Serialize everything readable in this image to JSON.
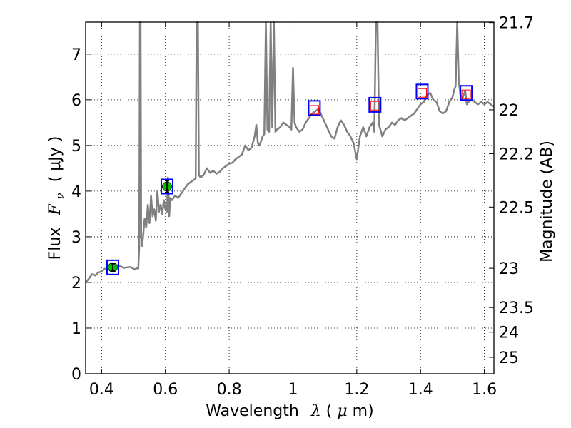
{
  "chart_data": {
    "type": "line",
    "title": "",
    "xlabel_prefix": "Wavelength",
    "xlabel_symbol": "λ",
    "xlabel_unit_open": " (",
    "xlabel_unit_mu": "μ",
    "xlabel_unit_rest": "m)",
    "ylabel_prefix": "Flux",
    "ylabel_symbol_F": "F",
    "ylabel_symbol_sub": "ν",
    "ylabel_unit": "(  μJy )",
    "y2label": "Magnitude (AB)",
    "xlim": [
      0.35,
      1.63
    ],
    "ylim": [
      0,
      7.7
    ],
    "grid": true,
    "grid_style": "dotted",
    "x_ticks": [
      {
        "v": 0.4,
        "label": "0.4"
      },
      {
        "v": 0.6,
        "label": "0.6"
      },
      {
        "v": 0.8,
        "label": "0.8"
      },
      {
        "v": 1.0,
        "label": "1"
      },
      {
        "v": 1.2,
        "label": "1.2"
      },
      {
        "v": 1.4,
        "label": "1.4"
      },
      {
        "v": 1.6,
        "label": "1.6"
      }
    ],
    "y_ticks": [
      {
        "v": 0,
        "label": "0"
      },
      {
        "v": 1,
        "label": "1"
      },
      {
        "v": 2,
        "label": "2"
      },
      {
        "v": 3,
        "label": "3"
      },
      {
        "v": 4,
        "label": "4"
      },
      {
        "v": 5,
        "label": "5"
      },
      {
        "v": 6,
        "label": "6"
      },
      {
        "v": 7,
        "label": "7"
      }
    ],
    "y2_ticks": [
      {
        "flux": 7.69,
        "label": "21.7"
      },
      {
        "flux": 5.78,
        "label": "22"
      },
      {
        "flux": 4.82,
        "label": "22.2"
      },
      {
        "flux": 3.65,
        "label": "22.5"
      },
      {
        "flux": 2.31,
        "label": "23"
      },
      {
        "flux": 1.45,
        "label": "23.5"
      },
      {
        "flux": 0.91,
        "label": "24"
      },
      {
        "flux": 0.36,
        "label": "25"
      }
    ],
    "series": [
      {
        "role": "model-sed",
        "color": "#808080",
        "points": [
          [
            0.35,
            2.0
          ],
          [
            0.36,
            2.08
          ],
          [
            0.37,
            2.18
          ],
          [
            0.38,
            2.15
          ],
          [
            0.39,
            2.22
          ],
          [
            0.4,
            2.24
          ],
          [
            0.41,
            2.3
          ],
          [
            0.42,
            2.28
          ],
          [
            0.43,
            2.32
          ],
          [
            0.44,
            2.36
          ],
          [
            0.45,
            2.38
          ],
          [
            0.46,
            2.35
          ],
          [
            0.47,
            2.32
          ],
          [
            0.48,
            2.33
          ],
          [
            0.49,
            2.34
          ],
          [
            0.5,
            2.3
          ],
          [
            0.505,
            2.28
          ],
          [
            0.51,
            2.32
          ],
          [
            0.515,
            2.3
          ],
          [
            0.518,
            2.8
          ],
          [
            0.52,
            7.7
          ],
          [
            0.522,
            7.7
          ],
          [
            0.524,
            3.0
          ],
          [
            0.527,
            2.8
          ],
          [
            0.53,
            3.0
          ],
          [
            0.535,
            3.4
          ],
          [
            0.54,
            3.2
          ],
          [
            0.545,
            3.7
          ],
          [
            0.55,
            3.3
          ],
          [
            0.555,
            3.9
          ],
          [
            0.56,
            3.45
          ],
          [
            0.565,
            3.6
          ],
          [
            0.57,
            3.35
          ],
          [
            0.575,
            4.0
          ],
          [
            0.58,
            3.55
          ],
          [
            0.585,
            3.7
          ],
          [
            0.59,
            3.5
          ],
          [
            0.595,
            3.8
          ],
          [
            0.6,
            3.6
          ],
          [
            0.605,
            3.55
          ],
          [
            0.608,
            4.3
          ],
          [
            0.612,
            3.45
          ],
          [
            0.615,
            3.85
          ],
          [
            0.62,
            3.8
          ],
          [
            0.63,
            3.9
          ],
          [
            0.64,
            3.85
          ],
          [
            0.65,
            3.95
          ],
          [
            0.66,
            4.05
          ],
          [
            0.67,
            4.15
          ],
          [
            0.68,
            4.2
          ],
          [
            0.69,
            4.25
          ],
          [
            0.695,
            4.28
          ],
          [
            0.698,
            7.7
          ],
          [
            0.702,
            7.7
          ],
          [
            0.705,
            4.35
          ],
          [
            0.71,
            4.3
          ],
          [
            0.72,
            4.35
          ],
          [
            0.73,
            4.5
          ],
          [
            0.74,
            4.4
          ],
          [
            0.75,
            4.45
          ],
          [
            0.76,
            4.38
          ],
          [
            0.77,
            4.42
          ],
          [
            0.78,
            4.5
          ],
          [
            0.79,
            4.55
          ],
          [
            0.8,
            4.6
          ],
          [
            0.81,
            4.62
          ],
          [
            0.82,
            4.7
          ],
          [
            0.83,
            4.75
          ],
          [
            0.84,
            4.8
          ],
          [
            0.85,
            5.0
          ],
          [
            0.86,
            4.9
          ],
          [
            0.87,
            4.95
          ],
          [
            0.88,
            5.2
          ],
          [
            0.885,
            5.45
          ],
          [
            0.89,
            5.05
          ],
          [
            0.895,
            5.0
          ],
          [
            0.9,
            5.1
          ],
          [
            0.905,
            5.2
          ],
          [
            0.91,
            5.25
          ],
          [
            0.915,
            7.7
          ],
          [
            0.92,
            5.35
          ],
          [
            0.925,
            5.3
          ],
          [
            0.93,
            7.7
          ],
          [
            0.935,
            5.4
          ],
          [
            0.94,
            7.7
          ],
          [
            0.945,
            5.3
          ],
          [
            0.95,
            5.35
          ],
          [
            0.96,
            5.4
          ],
          [
            0.97,
            5.5
          ],
          [
            0.98,
            5.45
          ],
          [
            0.99,
            5.4
          ],
          [
            0.995,
            5.35
          ],
          [
            1.0,
            6.7
          ],
          [
            1.005,
            5.5
          ],
          [
            1.01,
            5.4
          ],
          [
            1.02,
            5.3
          ],
          [
            1.03,
            5.35
          ],
          [
            1.04,
            5.5
          ],
          [
            1.05,
            5.6
          ],
          [
            1.06,
            5.7
          ],
          [
            1.07,
            5.75
          ],
          [
            1.08,
            5.8
          ],
          [
            1.09,
            5.65
          ],
          [
            1.1,
            5.5
          ],
          [
            1.11,
            5.35
          ],
          [
            1.12,
            5.2
          ],
          [
            1.13,
            5.15
          ],
          [
            1.14,
            5.4
          ],
          [
            1.15,
            5.55
          ],
          [
            1.16,
            5.45
          ],
          [
            1.17,
            5.3
          ],
          [
            1.18,
            5.2
          ],
          [
            1.19,
            5.05
          ],
          [
            1.2,
            4.7
          ],
          [
            1.21,
            5.2
          ],
          [
            1.22,
            5.4
          ],
          [
            1.23,
            5.2
          ],
          [
            1.24,
            5.4
          ],
          [
            1.25,
            5.5
          ],
          [
            1.255,
            5.3
          ],
          [
            1.26,
            7.7
          ],
          [
            1.265,
            7.7
          ],
          [
            1.27,
            5.45
          ],
          [
            1.28,
            5.2
          ],
          [
            1.29,
            5.35
          ],
          [
            1.3,
            5.4
          ],
          [
            1.31,
            5.5
          ],
          [
            1.32,
            5.45
          ],
          [
            1.33,
            5.55
          ],
          [
            1.34,
            5.6
          ],
          [
            1.35,
            5.55
          ],
          [
            1.36,
            5.6
          ],
          [
            1.37,
            5.65
          ],
          [
            1.38,
            5.7
          ],
          [
            1.39,
            5.8
          ],
          [
            1.4,
            5.9
          ],
          [
            1.41,
            5.95
          ],
          [
            1.42,
            6.1
          ],
          [
            1.43,
            6.15
          ],
          [
            1.44,
            6.0
          ],
          [
            1.45,
            5.95
          ],
          [
            1.46,
            5.75
          ],
          [
            1.47,
            5.7
          ],
          [
            1.48,
            5.75
          ],
          [
            1.49,
            5.95
          ],
          [
            1.5,
            6.05
          ],
          [
            1.505,
            6.2
          ],
          [
            1.51,
            6.3
          ],
          [
            1.515,
            7.7
          ],
          [
            1.52,
            6.4
          ],
          [
            1.525,
            6.1
          ],
          [
            1.53,
            6.0
          ],
          [
            1.535,
            6.1
          ],
          [
            1.54,
            6.2
          ],
          [
            1.545,
            5.9
          ],
          [
            1.55,
            5.95
          ],
          [
            1.56,
            6.0
          ],
          [
            1.57,
            5.95
          ],
          [
            1.58,
            5.9
          ],
          [
            1.59,
            5.95
          ],
          [
            1.6,
            5.9
          ],
          [
            1.61,
            5.95
          ],
          [
            1.62,
            5.9
          ],
          [
            1.63,
            5.85
          ]
        ]
      }
    ],
    "photometry": [
      {
        "x": 0.435,
        "y": 2.33,
        "yerr": 0.08,
        "observed": true,
        "model_y": 2.33
      },
      {
        "x": 0.605,
        "y": 4.1,
        "yerr": 0.13,
        "observed": true,
        "model_y": 4.1
      },
      {
        "x": 1.067,
        "y": 5.78,
        "observed": false,
        "model_y": 5.82
      },
      {
        "x": 1.257,
        "y": 5.87,
        "observed": false,
        "model_y": 5.89
      },
      {
        "x": 1.405,
        "y": 6.15,
        "observed": false,
        "model_y": 6.18
      },
      {
        "x": 1.543,
        "y": 6.12,
        "observed": false,
        "model_y": 6.15
      }
    ],
    "colors": {
      "model_line": "#808080",
      "observed_fill": "#00c000",
      "model_box": "#0000ff",
      "predicted_box": "#ff0000",
      "grid": "#000000",
      "error_bar": "#000000"
    }
  }
}
